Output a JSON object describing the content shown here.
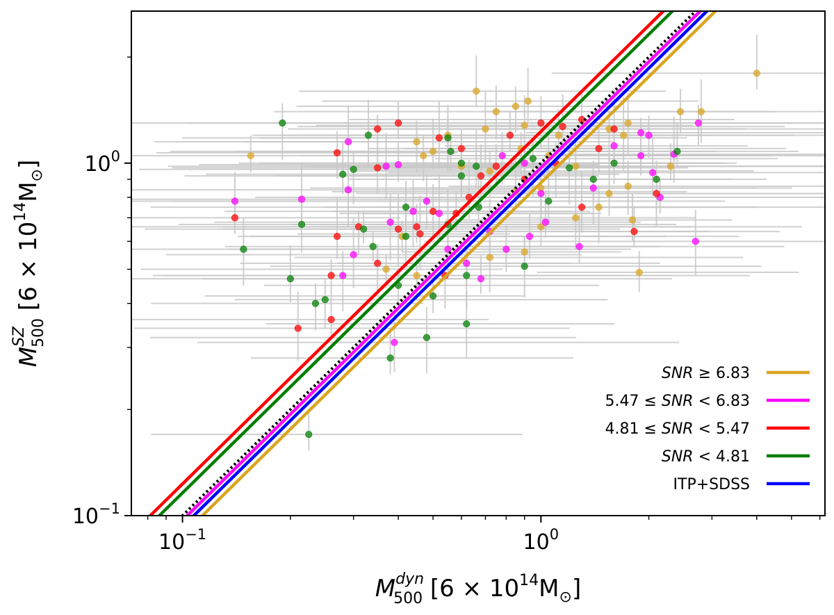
{
  "chart_data": {
    "type": "scatter",
    "title": "",
    "xlabel": "M_500^dyn [6 × 10^14 M_⊙]",
    "ylabel": "M_500^SZ [6 × 10^14 M_⊙]",
    "xlabel_parts": {
      "base": "M",
      "sup": "dyn",
      "sub": "500",
      "unit_open": " [6 × 10",
      "unit_exp": "14",
      "unit_close": "M",
      "unit_sub": "⊙",
      "unit_end": "]"
    },
    "ylabel_parts": {
      "base": "M",
      "sup": "SZ",
      "sub": "500",
      "unit_open": " [6 × 10",
      "unit_exp": "14",
      "unit_close": "M",
      "unit_sub": "⊙",
      "unit_end": "]"
    },
    "x_scale": "log",
    "y_scale": "log",
    "xlim": [
      0.072,
      6.2
    ],
    "ylim": [
      0.1,
      2.7
    ],
    "x_major_ticks": [
      0.1,
      1.0
    ],
    "y_major_ticks": [
      0.1,
      1.0
    ],
    "tick_labels": {
      "x": [
        {
          "base": "10",
          "exp": "−1"
        },
        {
          "base": "10",
          "exp": "0"
        }
      ],
      "y": [
        {
          "base": "10",
          "exp": "−1"
        },
        {
          "base": "10",
          "exp": "0"
        }
      ]
    },
    "grid": false,
    "legend_position": "bottom-right",
    "lines": [
      {
        "name": "SNR ≥ 6.83",
        "legend_parts": [
          {
            "t": "SNR",
            "i": true
          },
          {
            "t": " ≥ 6.83"
          }
        ],
        "color": "#DAA520",
        "slope": 1,
        "norm": 0.88
      },
      {
        "name": "5.47 ≤ SNR < 6.83",
        "legend_parts": [
          {
            "t": "5.47 ≤ "
          },
          {
            "t": "SNR",
            "i": true
          },
          {
            "t": " < 6.83"
          }
        ],
        "color": "#FF00FF",
        "slope": 1,
        "norm": 0.97
      },
      {
        "name": "4.81 ≤ SNR < 5.47",
        "legend_parts": [
          {
            "t": "4.81 ≤ "
          },
          {
            "t": "SNR",
            "i": true
          },
          {
            "t": " < 5.47"
          }
        ],
        "color": "#FF0000",
        "slope": 1,
        "norm": 1.23
      },
      {
        "name": "SNR < 4.81",
        "legend_parts": [
          {
            "t": "SNR",
            "i": true
          },
          {
            "t": " < 4.81"
          }
        ],
        "color": "#007F00",
        "slope": 1,
        "norm": 1.16
      },
      {
        "name": "ITP+SDSS",
        "legend_parts": [
          {
            "t": "ITP+SDSS"
          }
        ],
        "color": "#0000FF",
        "slope": 1,
        "norm": 0.93
      }
    ],
    "identity_line": {
      "style": "dotted",
      "color": "#000000",
      "slope": 1,
      "norm": 1.0
    },
    "error_bar_color": "#c8c8c8",
    "point_colors": {
      "gold": "#DAA520",
      "magenta": "#FF00FF",
      "red": "#FF0000",
      "green": "#007F00"
    },
    "series": [
      {
        "name": "SNR ≥ 6.83",
        "color": "#DAA520",
        "points": [
          {
            "x": 0.155,
            "y": 1.05
          },
          {
            "x": 0.66,
            "y": 1.6
          },
          {
            "x": 0.92,
            "y": 1.5
          },
          {
            "x": 0.85,
            "y": 1.45
          },
          {
            "x": 0.75,
            "y": 1.4
          },
          {
            "x": 0.7,
            "y": 1.25
          },
          {
            "x": 0.55,
            "y": 1.2
          },
          {
            "x": 0.45,
            "y": 1.15
          },
          {
            "x": 0.47,
            "y": 1.05
          },
          {
            "x": 0.5,
            "y": 1.08
          },
          {
            "x": 0.6,
            "y": 0.98
          },
          {
            "x": 0.72,
            "y": 0.95
          },
          {
            "x": 0.9,
            "y": 1.28
          },
          {
            "x": 0.88,
            "y": 1.1
          },
          {
            "x": 1.05,
            "y": 1.05
          },
          {
            "x": 1.12,
            "y": 1.2
          },
          {
            "x": 1.25,
            "y": 0.98
          },
          {
            "x": 1.55,
            "y": 1.25
          },
          {
            "x": 1.7,
            "y": 1.2
          },
          {
            "x": 1.75,
            "y": 1.3
          },
          {
            "x": 2.45,
            "y": 1.4
          },
          {
            "x": 2.8,
            "y": 1.4
          },
          {
            "x": 2.3,
            "y": 0.98
          },
          {
            "x": 4.0,
            "y": 1.8
          },
          {
            "x": 1.75,
            "y": 0.86
          },
          {
            "x": 1.45,
            "y": 0.75
          },
          {
            "x": 1.25,
            "y": 0.7
          },
          {
            "x": 1.0,
            "y": 0.66
          },
          {
            "x": 0.9,
            "y": 0.56
          },
          {
            "x": 0.72,
            "y": 0.54
          },
          {
            "x": 1.8,
            "y": 0.69
          },
          {
            "x": 1.88,
            "y": 0.49
          },
          {
            "x": 0.37,
            "y": 0.5
          },
          {
            "x": 0.45,
            "y": 0.48
          },
          {
            "x": 0.85,
            "y": 0.83
          },
          {
            "x": 1.55,
            "y": 0.82
          },
          {
            "x": 1.0,
            "y": 0.85
          },
          {
            "x": 0.41,
            "y": 0.62
          }
        ]
      },
      {
        "name": "5.47 ≤ SNR < 6.83",
        "color": "#FF00FF",
        "points": [
          {
            "x": 0.14,
            "y": 0.78
          },
          {
            "x": 0.215,
            "y": 0.79
          },
          {
            "x": 0.29,
            "y": 1.15
          },
          {
            "x": 0.29,
            "y": 0.84
          },
          {
            "x": 0.28,
            "y": 0.48
          },
          {
            "x": 0.3,
            "y": 0.55
          },
          {
            "x": 0.39,
            "y": 0.31
          },
          {
            "x": 0.38,
            "y": 0.68
          },
          {
            "x": 0.37,
            "y": 0.98
          },
          {
            "x": 0.44,
            "y": 0.73
          },
          {
            "x": 0.52,
            "y": 0.72
          },
          {
            "x": 0.55,
            "y": 0.57
          },
          {
            "x": 0.62,
            "y": 0.52
          },
          {
            "x": 0.68,
            "y": 0.47
          },
          {
            "x": 0.72,
            "y": 0.64
          },
          {
            "x": 0.78,
            "y": 1.05
          },
          {
            "x": 0.8,
            "y": 0.57
          },
          {
            "x": 0.9,
            "y": 1.0
          },
          {
            "x": 1.0,
            "y": 0.82
          },
          {
            "x": 1.03,
            "y": 0.68
          },
          {
            "x": 1.4,
            "y": 0.85
          },
          {
            "x": 1.6,
            "y": 1.12
          },
          {
            "x": 1.9,
            "y": 1.22
          },
          {
            "x": 2.0,
            "y": 1.2
          },
          {
            "x": 1.9,
            "y": 1.05
          },
          {
            "x": 2.05,
            "y": 0.94
          },
          {
            "x": 2.15,
            "y": 0.8
          },
          {
            "x": 2.35,
            "y": 1.06
          },
          {
            "x": 2.75,
            "y": 1.3
          },
          {
            "x": 2.7,
            "y": 0.6
          },
          {
            "x": 1.28,
            "y": 0.58
          },
          {
            "x": 0.93,
            "y": 0.62
          },
          {
            "x": 0.4,
            "y": 0.99
          },
          {
            "x": 0.48,
            "y": 0.78
          }
        ]
      },
      {
        "name": "4.81 ≤ SNR < 5.47",
        "color": "#FF0000",
        "points": [
          {
            "x": 0.14,
            "y": 0.7
          },
          {
            "x": 0.21,
            "y": 0.34
          },
          {
            "x": 0.26,
            "y": 0.48
          },
          {
            "x": 0.26,
            "y": 0.36
          },
          {
            "x": 0.27,
            "y": 0.62
          },
          {
            "x": 0.31,
            "y": 0.66
          },
          {
            "x": 0.27,
            "y": 1.07
          },
          {
            "x": 0.35,
            "y": 0.52
          },
          {
            "x": 0.35,
            "y": 0.97
          },
          {
            "x": 0.35,
            "y": 1.25
          },
          {
            "x": 0.4,
            "y": 1.3
          },
          {
            "x": 0.4,
            "y": 0.65
          },
          {
            "x": 0.46,
            "y": 0.63
          },
          {
            "x": 0.52,
            "y": 1.18
          },
          {
            "x": 0.6,
            "y": 1.1
          },
          {
            "x": 0.63,
            "y": 0.8
          },
          {
            "x": 0.68,
            "y": 0.92
          },
          {
            "x": 0.58,
            "y": 0.72
          },
          {
            "x": 0.5,
            "y": 0.73
          },
          {
            "x": 0.45,
            "y": 0.66
          },
          {
            "x": 0.75,
            "y": 0.98
          },
          {
            "x": 0.82,
            "y": 1.2
          },
          {
            "x": 1.0,
            "y": 1.3
          },
          {
            "x": 1.15,
            "y": 1.27
          },
          {
            "x": 1.1,
            "y": 1.0
          },
          {
            "x": 1.3,
            "y": 0.75
          },
          {
            "x": 1.45,
            "y": 1.1
          },
          {
            "x": 1.6,
            "y": 1.25
          },
          {
            "x": 2.1,
            "y": 0.82
          },
          {
            "x": 1.82,
            "y": 0.64
          },
          {
            "x": 1.3,
            "y": 1.33
          },
          {
            "x": 0.9,
            "y": 0.9
          },
          {
            "x": 0.54,
            "y": 0.48
          }
        ]
      },
      {
        "name": "SNR < 4.81",
        "color": "#007F00",
        "points": [
          {
            "x": 0.19,
            "y": 1.3
          },
          {
            "x": 0.148,
            "y": 0.57
          },
          {
            "x": 0.2,
            "y": 0.47
          },
          {
            "x": 0.215,
            "y": 0.67
          },
          {
            "x": 0.225,
            "y": 0.17
          },
          {
            "x": 0.235,
            "y": 0.4
          },
          {
            "x": 0.25,
            "y": 0.41
          },
          {
            "x": 0.28,
            "y": 0.93
          },
          {
            "x": 0.3,
            "y": 0.96
          },
          {
            "x": 0.33,
            "y": 1.2
          },
          {
            "x": 0.32,
            "y": 0.65
          },
          {
            "x": 0.34,
            "y": 0.58
          },
          {
            "x": 0.4,
            "y": 0.45
          },
          {
            "x": 0.38,
            "y": 0.28
          },
          {
            "x": 0.42,
            "y": 0.62
          },
          {
            "x": 0.48,
            "y": 0.32
          },
          {
            "x": 0.5,
            "y": 0.42
          },
          {
            "x": 0.55,
            "y": 1.18
          },
          {
            "x": 0.56,
            "y": 1.08
          },
          {
            "x": 0.6,
            "y": 1.0
          },
          {
            "x": 0.66,
            "y": 0.98
          },
          {
            "x": 0.6,
            "y": 0.92
          },
          {
            "x": 0.62,
            "y": 0.48
          },
          {
            "x": 0.55,
            "y": 0.67
          },
          {
            "x": 0.62,
            "y": 0.35
          },
          {
            "x": 0.9,
            "y": 0.51
          },
          {
            "x": 0.95,
            "y": 1.03
          },
          {
            "x": 1.05,
            "y": 0.78
          },
          {
            "x": 1.4,
            "y": 0.9
          },
          {
            "x": 1.6,
            "y": 1.0
          },
          {
            "x": 2.1,
            "y": 0.9
          },
          {
            "x": 2.4,
            "y": 1.08
          },
          {
            "x": 0.67,
            "y": 0.75
          },
          {
            "x": 0.42,
            "y": 0.75
          },
          {
            "x": 1.2,
            "y": 0.97
          }
        ]
      }
    ]
  }
}
